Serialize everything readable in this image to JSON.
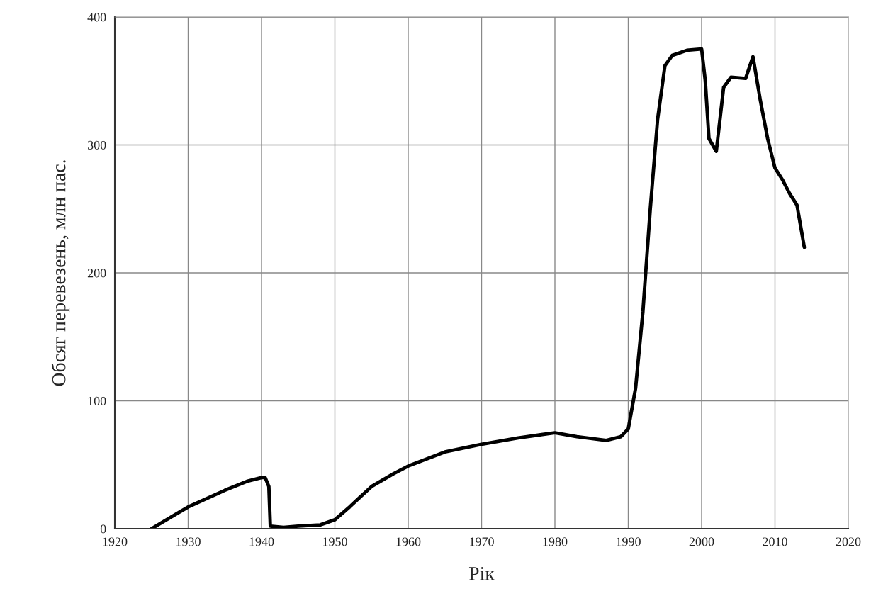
{
  "chart_data": {
    "type": "line",
    "xlabel": "Рік",
    "ylabel": "Обсяг перевезень, млн пас.",
    "x": [
      1925,
      1930,
      1935,
      1938,
      1940,
      1940.5,
      1941,
      1941.2,
      1943,
      1945,
      1948,
      1950,
      1952,
      1955,
      1958,
      1960,
      1965,
      1970,
      1975,
      1980,
      1983,
      1987,
      1989,
      1990,
      1991,
      1992,
      1993,
      1994,
      1995,
      1996,
      1998,
      2000,
      2000.5,
      2001,
      2002,
      2003,
      2004,
      2006,
      2007,
      2008,
      2009,
      2010,
      2011,
      2012,
      2013,
      2014
    ],
    "series": [
      {
        "color": "#000000",
        "values": [
          0,
          17,
          30,
          37,
          40,
          40,
          33,
          2,
          1,
          2,
          3,
          7,
          17,
          33,
          43,
          49,
          60,
          66,
          71,
          75,
          72,
          69,
          72,
          78,
          110,
          170,
          250,
          320,
          362,
          370,
          374,
          375,
          350,
          305,
          295,
          345,
          353,
          352,
          369,
          335,
          305,
          282,
          273,
          262,
          253,
          220
        ]
      }
    ],
    "xlim": [
      1920,
      2020
    ],
    "xticks": [
      1920,
      1930,
      1940,
      1950,
      1960,
      1970,
      1980,
      1990,
      2000,
      2010,
      2020
    ],
    "ylim": [
      0,
      400
    ],
    "yticks": [
      0,
      100,
      200,
      300,
      400
    ],
    "grid": true,
    "marker": "none",
    "line_style": "solid"
  }
}
